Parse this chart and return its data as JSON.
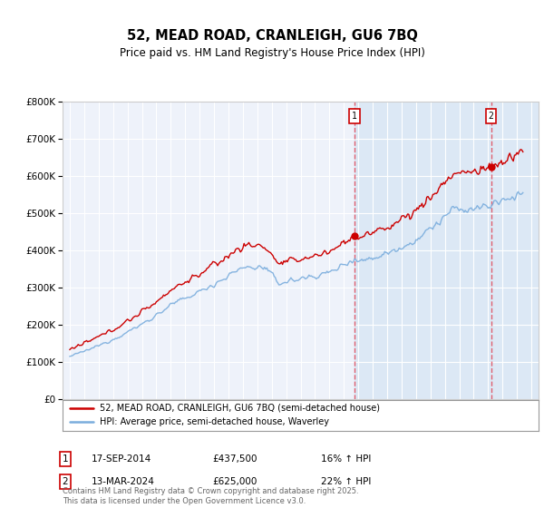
{
  "title": "52, MEAD ROAD, CRANLEIGH, GU6 7BQ",
  "subtitle": "Price paid vs. HM Land Registry's House Price Index (HPI)",
  "sale1_date": "17-SEP-2014",
  "sale1_price": 437500,
  "sale1_hpi_label": "16% ↑ HPI",
  "sale2_date": "13-MAR-2024",
  "sale2_price": 625000,
  "sale2_hpi_label": "22% ↑ HPI",
  "legend_label1": "52, MEAD ROAD, CRANLEIGH, GU6 7BQ (semi-detached house)",
  "legend_label2": "HPI: Average price, semi-detached house, Waverley",
  "footer": "Contains HM Land Registry data © Crown copyright and database right 2025.\nThis data is licensed under the Open Government Licence v3.0.",
  "line1_color": "#cc0000",
  "line2_color": "#7aaddd",
  "sale1_x_year": 2014.75,
  "sale2_x_year": 2024.2,
  "xmin": 1994.5,
  "xmax": 2027.5,
  "ymin": 0,
  "ymax": 800000,
  "background_color": "#ffffff",
  "plot_bg_color": "#eef2fa",
  "shade_color": "#dce8f5",
  "grid_color": "#ffffff",
  "hatch_color": "#b8cfe8"
}
